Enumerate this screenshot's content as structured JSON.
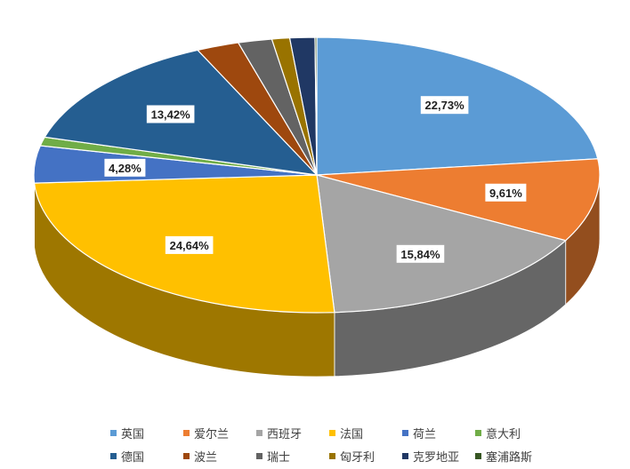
{
  "chart_data": {
    "type": "pie",
    "style": "3d",
    "series": [
      {
        "name": "英国",
        "value": 22.73,
        "label": "22,73%",
        "color": "#5b9bd5"
      },
      {
        "name": "爱尔兰",
        "value": 9.61,
        "label": "9,61%",
        "color": "#ed7d31"
      },
      {
        "name": "西班牙",
        "value": 15.84,
        "label": "15,84%",
        "color": "#a5a5a5"
      },
      {
        "name": "法国",
        "value": 24.64,
        "label": "24,64%",
        "color": "#ffc000"
      },
      {
        "name": "荷兰",
        "value": 4.28,
        "label": "4,28%",
        "color": "#4472c4"
      },
      {
        "name": "意大利",
        "value": 1.0,
        "label": "",
        "color": "#70ad47"
      },
      {
        "name": "德国",
        "value": 13.42,
        "label": "13,42%",
        "color": "#255e91"
      },
      {
        "name": "波兰",
        "value": 2.4,
        "label": "",
        "color": "#9e480e"
      },
      {
        "name": "瑞士",
        "value": 1.9,
        "label": "",
        "color": "#636363"
      },
      {
        "name": "匈牙利",
        "value": 1.0,
        "label": "",
        "color": "#997300"
      },
      {
        "name": "克罗地亚",
        "value": 1.4,
        "label": "",
        "color": "#203864"
      },
      {
        "name": "塞浦路斯",
        "value": 0.1,
        "label": "",
        "color": "#375623"
      }
    ],
    "legend_position": "bottom"
  }
}
